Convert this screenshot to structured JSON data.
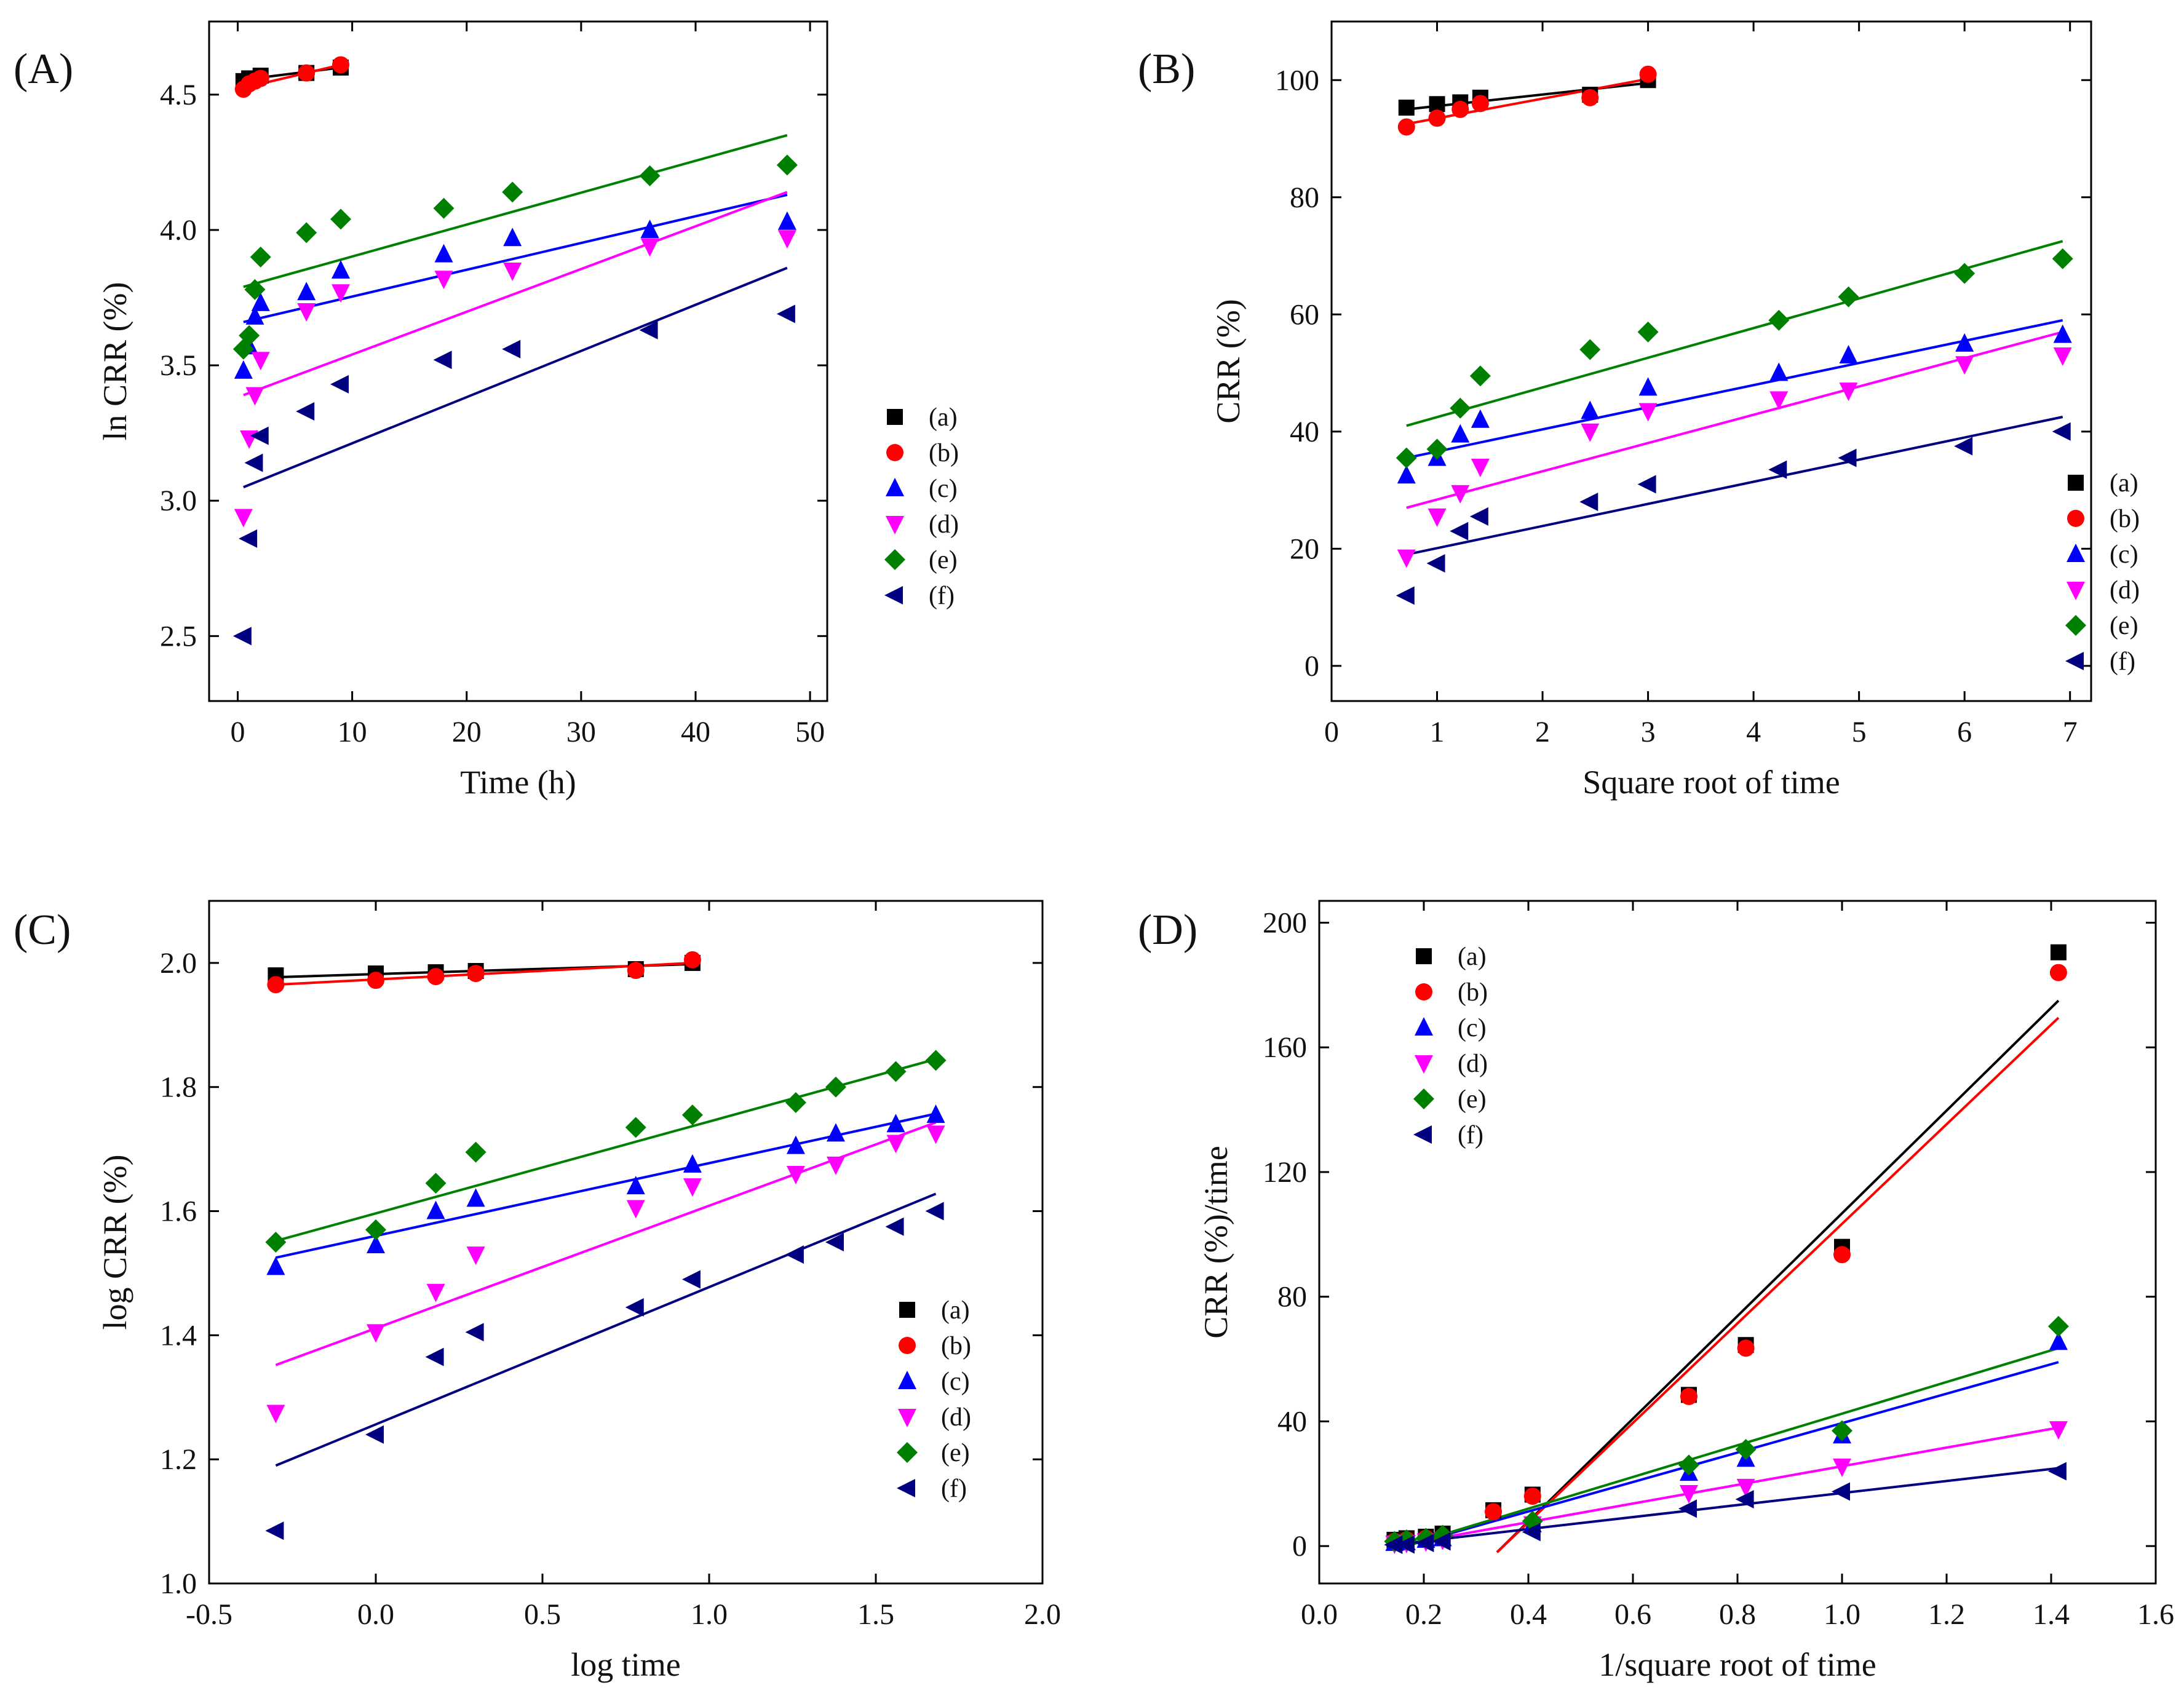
{
  "figure": {
    "panels": [
      "A",
      "B",
      "C",
      "D"
    ]
  },
  "colors": {
    "a": "#000000",
    "b": "#ff0000",
    "c": "#0000ff",
    "d": "#ff00ff",
    "e": "#008000",
    "f": "#000080"
  },
  "chart_data": [
    {
      "type": "scatter",
      "panel_label": "(A)",
      "xlabel": "Time (h)",
      "ylabel": "ln CRR (%)",
      "xlim": [
        -2.5,
        51.5
      ],
      "ylim": [
        2.26,
        4.77
      ],
      "xticks": [
        0,
        10,
        20,
        30,
        40,
        50
      ],
      "xtick_labels": [
        "0",
        "10",
        "20",
        "30",
        "40",
        "50"
      ],
      "yticks": [
        2.5,
        3.0,
        3.5,
        4.0,
        4.5
      ],
      "ytick_labels": [
        "2.5",
        "3.0",
        "3.5",
        "4.0",
        "4.5"
      ],
      "legend": {
        "position": "lower-right",
        "labels": [
          "(a)",
          "(b)",
          "(c)",
          "(d)",
          "(e)",
          "(f)"
        ]
      },
      "series": [
        {
          "key": "a",
          "name": "(a)",
          "marker": "square",
          "x": [
            0.5,
            1,
            1.5,
            2,
            6,
            9
          ],
          "y": [
            4.55,
            4.56,
            4.56,
            4.57,
            4.58,
            4.6
          ],
          "fit": [
            [
              0.5,
              4.555
            ],
            [
              9,
              4.6
            ]
          ]
        },
        {
          "key": "b",
          "name": "(b)",
          "marker": "circle",
          "x": [
            0.5,
            1,
            1.5,
            2,
            6,
            9
          ],
          "y": [
            4.52,
            4.54,
            4.55,
            4.56,
            4.58,
            4.61
          ],
          "fit": [
            [
              0.5,
              4.525
            ],
            [
              9,
              4.61
            ]
          ]
        },
        {
          "key": "c",
          "name": "(c)",
          "marker": "triangle-up",
          "x": [
            0.5,
            1,
            1.5,
            2,
            6,
            9,
            18,
            24,
            36,
            48
          ],
          "y": [
            3.48,
            3.57,
            3.68,
            3.73,
            3.77,
            3.85,
            3.91,
            3.97,
            4.0,
            4.03
          ],
          "fit": [
            [
              0.5,
              3.66
            ],
            [
              48,
              4.13
            ]
          ]
        },
        {
          "key": "d",
          "name": "(d)",
          "marker": "triangle-down",
          "x": [
            0.5,
            1,
            1.5,
            2,
            6,
            9,
            18,
            24,
            36,
            48
          ],
          "y": [
            2.94,
            3.23,
            3.39,
            3.52,
            3.7,
            3.77,
            3.82,
            3.85,
            3.94,
            3.97
          ],
          "fit": [
            [
              0.5,
              3.39
            ],
            [
              48,
              4.14
            ]
          ]
        },
        {
          "key": "e",
          "name": "(e)",
          "marker": "diamond",
          "x": [
            0.5,
            1,
            1.5,
            2,
            6,
            9,
            18,
            24,
            36,
            48
          ],
          "y": [
            3.56,
            3.61,
            3.78,
            3.9,
            3.99,
            4.04,
            4.08,
            4.14,
            4.2,
            4.24
          ],
          "fit": [
            [
              0.5,
              3.79
            ],
            [
              48,
              4.35
            ]
          ]
        },
        {
          "key": "f",
          "name": "(f)",
          "marker": "triangle-left",
          "x": [
            0.5,
            1,
            1.5,
            2,
            6,
            9,
            18,
            24,
            36,
            48
          ],
          "y": [
            2.5,
            2.86,
            3.14,
            3.24,
            3.33,
            3.43,
            3.52,
            3.56,
            3.63,
            3.69
          ],
          "fit": [
            [
              0.5,
              3.05
            ],
            [
              48,
              3.86
            ]
          ]
        }
      ]
    },
    {
      "type": "scatter",
      "panel_label": "(B)",
      "xlabel": "Square root of time",
      "ylabel": "CRR (%)",
      "xlim": [
        0,
        7.2
      ],
      "ylim": [
        -6,
        110
      ],
      "xticks": [
        0,
        1,
        2,
        3,
        4,
        5,
        6,
        7
      ],
      "xtick_labels": [
        "0",
        "1",
        "2",
        "3",
        "4",
        "5",
        "6",
        "7"
      ],
      "yticks": [
        0,
        20,
        40,
        60,
        80,
        100
      ],
      "ytick_labels": [
        "0",
        "20",
        "40",
        "60",
        "80",
        "100"
      ],
      "legend": {
        "position": "lower-right",
        "labels": [
          "(a)",
          "(b)",
          "(c)",
          "(d)",
          "(e)",
          "(f)"
        ]
      },
      "series": [
        {
          "key": "a",
          "name": "(a)",
          "marker": "square",
          "x": [
            0.71,
            1.0,
            1.22,
            1.41,
            2.45,
            3.0
          ],
          "y": [
            95.3,
            95.9,
            96.2,
            97.0,
            97.5,
            100.0
          ],
          "fit": [
            [
              0.71,
              95.0
            ],
            [
              3.0,
              99.5
            ]
          ]
        },
        {
          "key": "b",
          "name": "(b)",
          "marker": "circle",
          "x": [
            0.71,
            1.0,
            1.22,
            1.41,
            2.45,
            3.0
          ],
          "y": [
            92.0,
            93.5,
            95.0,
            96.0,
            97.0,
            101.0
          ],
          "fit": [
            [
              0.71,
              92.5
            ],
            [
              3.0,
              100.2
            ]
          ]
        },
        {
          "key": "c",
          "name": "(c)",
          "marker": "triangle-up",
          "x": [
            0.71,
            1.0,
            1.22,
            1.41,
            2.45,
            3.0,
            4.24,
            4.9,
            6.0,
            6.93
          ],
          "y": [
            32.5,
            35.5,
            39.5,
            42.0,
            43.5,
            47.5,
            50.0,
            53.0,
            55.0,
            56.5
          ],
          "fit": [
            [
              0.71,
              35.5
            ],
            [
              6.93,
              59.0
            ]
          ]
        },
        {
          "key": "d",
          "name": "(d)",
          "marker": "triangle-down",
          "x": [
            0.71,
            1.0,
            1.22,
            1.41,
            2.45,
            3.0,
            4.24,
            4.9,
            6.0,
            6.93
          ],
          "y": [
            18.5,
            25.5,
            29.5,
            34.0,
            40.0,
            43.5,
            45.5,
            47.0,
            51.5,
            53.0
          ],
          "fit": [
            [
              0.71,
              27.0
            ],
            [
              6.93,
              57.0
            ]
          ]
        },
        {
          "key": "e",
          "name": "(e)",
          "marker": "diamond",
          "x": [
            0.71,
            1.0,
            1.22,
            1.41,
            2.45,
            3.0,
            4.24,
            4.9,
            6.0,
            6.93
          ],
          "y": [
            35.5,
            37.0,
            44.0,
            49.5,
            54.0,
            57.0,
            59.0,
            63.0,
            67.0,
            69.5
          ],
          "fit": [
            [
              0.71,
              41.0
            ],
            [
              6.93,
              72.5
            ]
          ]
        },
        {
          "key": "f",
          "name": "(f)",
          "marker": "triangle-left",
          "x": [
            0.71,
            1.0,
            1.22,
            1.41,
            2.45,
            3.0,
            4.24,
            4.9,
            6.0,
            6.93
          ],
          "y": [
            12.0,
            17.5,
            23.0,
            25.5,
            28.0,
            31.0,
            33.5,
            35.5,
            37.5,
            40.0
          ],
          "fit": [
            [
              0.71,
              19.0
            ],
            [
              6.93,
              42.5
            ]
          ]
        }
      ]
    },
    {
      "type": "scatter",
      "panel_label": "(C)",
      "xlabel": "log time",
      "ylabel": "log CRR (%)",
      "xlim": [
        -0.5,
        2.0
      ],
      "ylim": [
        1.0,
        2.1
      ],
      "xticks": [
        -0.5,
        0.0,
        0.5,
        1.0,
        1.5,
        2.0
      ],
      "xtick_labels": [
        "-0.5",
        "0.0",
        "0.5",
        "1.0",
        "1.5",
        "2.0"
      ],
      "yticks": [
        1.0,
        1.2,
        1.4,
        1.6,
        1.8,
        2.0
      ],
      "ytick_labels": [
        "1.0",
        "1.2",
        "1.4",
        "1.6",
        "1.8",
        "2.0"
      ],
      "legend": {
        "position": "lower-right",
        "labels": [
          "(a)",
          "(b)",
          "(c)",
          "(d)",
          "(e)",
          "(f)"
        ]
      },
      "series": [
        {
          "key": "a",
          "name": "(a)",
          "marker": "square",
          "x": [
            -0.3,
            0.0,
            0.18,
            0.3,
            0.78,
            0.95
          ],
          "y": [
            1.98,
            1.983,
            1.985,
            1.987,
            1.99,
            2.0
          ],
          "fit": [
            [
              -0.3,
              1.977
            ],
            [
              0.95,
              1.998
            ]
          ]
        },
        {
          "key": "b",
          "name": "(b)",
          "marker": "circle",
          "x": [
            -0.3,
            0.0,
            0.18,
            0.3,
            0.78,
            0.95
          ],
          "y": [
            1.965,
            1.972,
            1.978,
            1.983,
            1.988,
            2.005
          ],
          "fit": [
            [
              -0.3,
              1.965
            ],
            [
              0.95,
              2.0
            ]
          ]
        },
        {
          "key": "c",
          "name": "(c)",
          "marker": "triangle-up",
          "x": [
            -0.3,
            0.0,
            0.18,
            0.3,
            0.78,
            0.95,
            1.26,
            1.38,
            1.56,
            1.68
          ],
          "y": [
            1.51,
            1.545,
            1.6,
            1.62,
            1.64,
            1.675,
            1.705,
            1.725,
            1.74,
            1.755
          ],
          "fit": [
            [
              -0.3,
              1.525
            ],
            [
              1.68,
              1.757
            ]
          ]
        },
        {
          "key": "d",
          "name": "(d)",
          "marker": "triangle-down",
          "x": [
            -0.3,
            0.0,
            0.18,
            0.3,
            0.78,
            0.95,
            1.26,
            1.38,
            1.56,
            1.68
          ],
          "y": [
            1.275,
            1.405,
            1.47,
            1.53,
            1.605,
            1.64,
            1.66,
            1.675,
            1.71,
            1.725
          ],
          "fit": [
            [
              -0.3,
              1.352
            ],
            [
              1.68,
              1.743
            ]
          ]
        },
        {
          "key": "e",
          "name": "(e)",
          "marker": "diamond",
          "x": [
            -0.3,
            0.0,
            0.18,
            0.3,
            0.78,
            0.95,
            1.26,
            1.38,
            1.56,
            1.68
          ],
          "y": [
            1.55,
            1.57,
            1.645,
            1.695,
            1.735,
            1.755,
            1.775,
            1.8,
            1.825,
            1.843
          ],
          "fit": [
            [
              -0.3,
              1.552
            ],
            [
              1.68,
              1.845
            ]
          ]
        },
        {
          "key": "f",
          "name": "(f)",
          "marker": "triangle-left",
          "x": [
            -0.3,
            0.0,
            0.18,
            0.3,
            0.78,
            0.95,
            1.26,
            1.38,
            1.56,
            1.68
          ],
          "y": [
            1.085,
            1.24,
            1.365,
            1.405,
            1.445,
            1.49,
            1.53,
            1.55,
            1.575,
            1.6
          ],
          "fit": [
            [
              -0.3,
              1.19
            ],
            [
              1.68,
              1.628
            ]
          ]
        }
      ]
    },
    {
      "type": "scatter",
      "panel_label": "(D)",
      "xlabel": "1/square root of time",
      "ylabel": "CRR (%)/time",
      "xlim": [
        0.0,
        1.6
      ],
      "ylim": [
        -12,
        207
      ],
      "xticks": [
        0.0,
        0.2,
        0.4,
        0.6,
        0.8,
        1.0,
        1.2,
        1.4,
        1.6
      ],
      "xtick_labels": [
        "0.0",
        "0.2",
        "0.4",
        "0.6",
        "0.8",
        "1.0",
        "1.2",
        "1.4",
        "1.6"
      ],
      "yticks": [
        0,
        40,
        80,
        120,
        160,
        200
      ],
      "ytick_labels": [
        "0",
        "40",
        "80",
        "120",
        "160",
        "200"
      ],
      "legend": {
        "position": "top-left",
        "labels": [
          "(a)",
          "(b)",
          "(c)",
          "(d)",
          "(e)",
          "(f)"
        ]
      },
      "series": [
        {
          "key": "a",
          "name": "(a)",
          "marker": "square",
          "x": [
            0.144,
            0.167,
            0.204,
            0.236,
            0.333,
            0.408,
            0.707,
            0.816,
            1.0,
            1.414
          ],
          "y": [
            2.0,
            2.5,
            3.0,
            4.0,
            11.5,
            16.5,
            48.5,
            64.5,
            96.0,
            190.5
          ],
          "fit": [
            [
              0.34,
              -2.0
            ],
            [
              1.414,
              175.0
            ]
          ]
        },
        {
          "key": "b",
          "name": "(b)",
          "marker": "circle",
          "x": [
            0.144,
            0.167,
            0.204,
            0.236,
            0.333,
            0.408,
            0.707,
            0.816,
            1.0,
            1.414
          ],
          "y": [
            1.5,
            2.0,
            2.5,
            3.0,
            11.0,
            16.0,
            48.0,
            63.5,
            93.5,
            184.0
          ],
          "fit": [
            [
              0.34,
              -2.0
            ],
            [
              1.414,
              169.5
            ]
          ]
        },
        {
          "key": "c",
          "name": "(c)",
          "marker": "triangle-up",
          "x": [
            0.144,
            0.167,
            0.204,
            0.236,
            0.408,
            0.707,
            0.816,
            1.0,
            1.414
          ],
          "y": [
            1.0,
            1.2,
            2.0,
            2.5,
            7.0,
            23.5,
            28.0,
            35.5,
            65.5
          ],
          "fit": [
            [
              0.144,
              -1.0
            ],
            [
              1.414,
              59.0
            ]
          ]
        },
        {
          "key": "d",
          "name": "(d)",
          "marker": "triangle-down",
          "x": [
            0.144,
            0.167,
            0.204,
            0.236,
            0.408,
            0.707,
            0.816,
            1.0,
            1.414
          ],
          "y": [
            0.8,
            1.0,
            1.5,
            2.0,
            7.0,
            17.0,
            19.0,
            25.5,
            37.5
          ],
          "fit": [
            [
              0.144,
              0.0
            ],
            [
              1.414,
              38.0
            ]
          ]
        },
        {
          "key": "e",
          "name": "(e)",
          "marker": "diamond",
          "x": [
            0.144,
            0.167,
            0.204,
            0.236,
            0.408,
            0.707,
            0.816,
            1.0,
            1.414
          ],
          "y": [
            1.5,
            2.0,
            2.5,
            3.5,
            8.0,
            26.0,
            31.0,
            37.0,
            70.5
          ],
          "fit": [
            [
              0.144,
              -1.0
            ],
            [
              1.414,
              63.5
            ]
          ]
        },
        {
          "key": "f",
          "name": "(f)",
          "marker": "triangle-left",
          "x": [
            0.144,
            0.167,
            0.204,
            0.236,
            0.408,
            0.707,
            0.816,
            1.0,
            1.414
          ],
          "y": [
            0.4,
            0.5,
            1.0,
            1.5,
            4.5,
            12.0,
            15.0,
            17.5,
            24.0
          ],
          "fit": [
            [
              0.144,
              0.5
            ],
            [
              1.414,
              25.0
            ]
          ]
        }
      ]
    }
  ]
}
